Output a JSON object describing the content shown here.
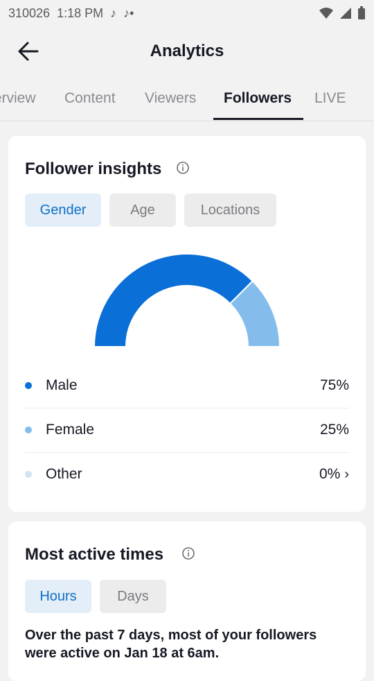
{
  "status": {
    "carrier": "310026",
    "time": "1:18 PM"
  },
  "header": {
    "title": "Analytics"
  },
  "tabs": [
    {
      "label": "Overview"
    },
    {
      "label": "Content"
    },
    {
      "label": "Viewers"
    },
    {
      "label": "Followers"
    },
    {
      "label": "LIVE"
    }
  ],
  "insights": {
    "title": "Follower insights",
    "chips": [
      {
        "label": "Gender"
      },
      {
        "label": "Age"
      },
      {
        "label": "Locations"
      }
    ],
    "selected_chip": "Gender",
    "gender": [
      {
        "label": "Male",
        "value": "75%",
        "fraction": 0.75,
        "color": "#0a6fd6"
      },
      {
        "label": "Female",
        "value": "25%",
        "fraction": 0.25,
        "color": "#84bdec"
      },
      {
        "label": "Other",
        "value": "0%",
        "fraction": 0.0,
        "color": "#cfe3f5"
      }
    ]
  },
  "active": {
    "title": "Most active times",
    "chips": [
      {
        "label": "Hours"
      },
      {
        "label": "Days"
      }
    ],
    "selected_chip": "Hours",
    "summary": "Over the past 7 days, most of your followers were active on Jan 18 at 6am."
  }
}
